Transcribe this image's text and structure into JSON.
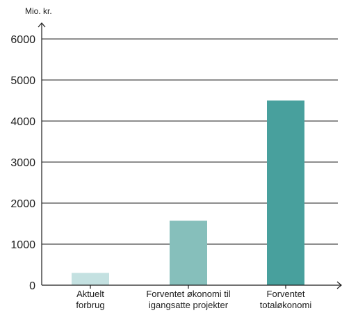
{
  "chart_data": {
    "type": "bar",
    "ylabel": "Mio. kr.",
    "categories": [
      [
        "Aktuelt",
        "forbrug"
      ],
      [
        "Forventet økonomi til",
        "igangsatte projekter"
      ],
      [
        "Forventet",
        "totaløkonomi"
      ]
    ],
    "values": [
      300,
      1570,
      4500
    ],
    "colors": [
      "#c4e1e1",
      "#86bfbb",
      "#48a09d"
    ],
    "ylim": [
      0,
      6000
    ],
    "yticks": [
      0,
      1000,
      2000,
      3000,
      4000,
      5000,
      6000
    ],
    "grid": true
  }
}
